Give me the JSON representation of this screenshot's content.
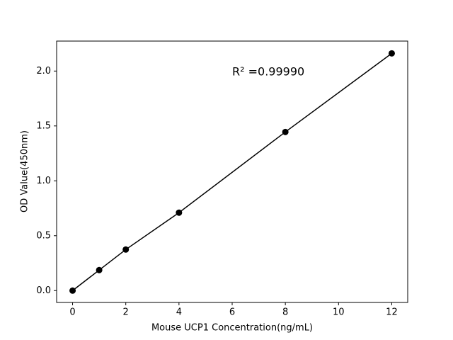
{
  "chart_data": {
    "type": "line",
    "x_label": "Mouse UCP1 Concentration(ng/mL)",
    "y_label": "OD Value(450nm)",
    "annotation": "R² =0.99990",
    "x": [
      0,
      1,
      2,
      4,
      8,
      12
    ],
    "series": [
      {
        "color": "#000000",
        "values": [
          0,
          0.187,
          0.374,
          0.71,
          1.445,
          2.161
        ]
      }
    ],
    "xlim": [
      -0.6,
      12.6
    ],
    "ylim": [
      -0.108,
      2.273
    ],
    "xticks": [
      0,
      2,
      4,
      6,
      8,
      10,
      12
    ],
    "yticks": [
      {
        "value": 0,
        "label": "0.0"
      },
      0.5,
      {
        "value": 1,
        "label": "1.0"
      },
      1.5,
      {
        "value": 2,
        "label": "2.0"
      }
    ],
    "grid": false
  }
}
